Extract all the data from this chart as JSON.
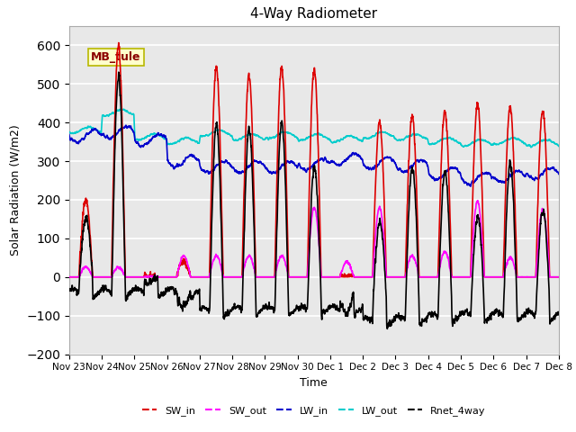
{
  "title": "4-Way Radiometer",
  "xlabel": "Time",
  "ylabel": "Solar Radiation (W/m2)",
  "ylim": [
    -200,
    650
  ],
  "yticks": [
    -200,
    -100,
    0,
    100,
    200,
    300,
    400,
    500,
    600
  ],
  "background_color": "#e8e8e8",
  "grid_color": "white",
  "annotation_text": "MB_tule",
  "annotation_color": "#8b0000",
  "annotation_bg": "#ffffcc",
  "annotation_border": "#b8b800",
  "colors": {
    "SW_in": "#dd0000",
    "SW_out": "#ff00ff",
    "LW_in": "#0000cc",
    "LW_out": "#00cccc",
    "Rnet_4way": "#000000"
  },
  "xtick_labels": [
    "Nov 23",
    "Nov 24",
    "Nov 25",
    "Nov 26",
    "Nov 27",
    "Nov 28",
    "Nov 29",
    "Nov 30",
    "Dec 1",
    "Dec 2",
    "Dec 3",
    "Dec 4",
    "Dec 5",
    "Dec 6",
    "Dec 7",
    "Dec 8"
  ],
  "n_days": 15,
  "n_points": 3600,
  "sw_in_peaks": [
    200,
    600,
    0,
    40,
    540,
    520,
    540,
    540,
    0,
    400,
    420,
    430,
    450,
    440,
    430
  ],
  "sw_out_peaks": [
    25,
    25,
    0,
    55,
    55,
    55,
    55,
    180,
    40,
    180,
    55,
    65,
    195,
    50,
    175
  ],
  "lw_in_base": [
    365,
    375,
    355,
    300,
    285,
    285,
    285,
    292,
    305,
    295,
    288,
    268,
    255,
    260,
    268
  ],
  "lw_out_base": [
    380,
    425,
    362,
    352,
    372,
    362,
    367,
    362,
    357,
    367,
    362,
    352,
    347,
    352,
    347
  ],
  "night_rnet": [
    -45,
    -45,
    -45,
    -45,
    -95,
    -90,
    -90,
    -90,
    -90,
    -120,
    -115,
    -110,
    -105,
    -105,
    -105
  ]
}
